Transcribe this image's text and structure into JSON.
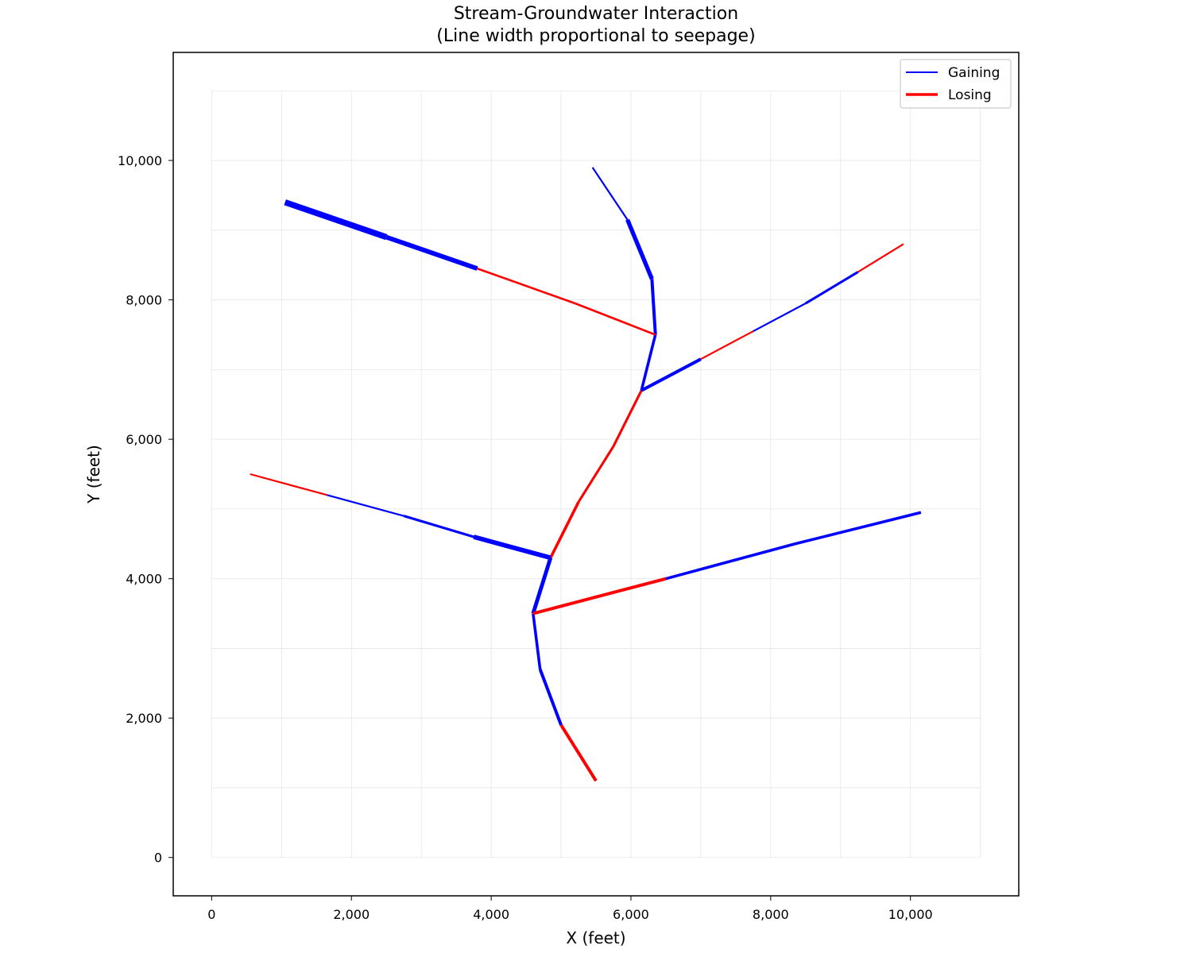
{
  "chart_data": {
    "type": "line",
    "title": [
      "Stream-Groundwater Interaction",
      "(Line width proportional to seepage)"
    ],
    "xlabel": "X (feet)",
    "ylabel": "Y (feet)",
    "xlim": [
      -550,
      11550
    ],
    "ylim": [
      -550,
      11550
    ],
    "xticks": [
      0,
      2000,
      4000,
      6000,
      8000,
      10000
    ],
    "yticks": [
      0,
      2000,
      4000,
      6000,
      8000,
      10000
    ],
    "xtick_labels": [
      "0",
      "2,000",
      "4,000",
      "6,000",
      "8,000",
      "10,000"
    ],
    "ytick_labels": [
      "0",
      "2,000",
      "4,000",
      "6,000",
      "8,000",
      "10,000"
    ],
    "grid": {
      "on": true,
      "extent": [
        0,
        11000
      ],
      "step": 1000
    },
    "legend": {
      "position": "top-right",
      "entries": [
        {
          "label": "Gaining",
          "status": "gaining"
        },
        {
          "label": "Losing",
          "status": "losing"
        }
      ]
    },
    "colors": {
      "gaining": "#0000ff",
      "losing": "#ff0000"
    },
    "seepage_scale_note": "relative seepage magnitude",
    "segments": [
      {
        "x": [
          5500,
          5000
        ],
        "y": [
          1100,
          1900
        ],
        "status": "losing",
        "seepage": 4
      },
      {
        "x": [
          5000,
          4700
        ],
        "y": [
          1900,
          2700
        ],
        "status": "gaining",
        "seepage": 4
      },
      {
        "x": [
          4700,
          4600
        ],
        "y": [
          2700,
          3500
        ],
        "status": "gaining",
        "seepage": 3.5
      },
      {
        "x": [
          4600,
          4850
        ],
        "y": [
          3500,
          4300
        ],
        "status": "gaining",
        "seepage": 5
      },
      {
        "x": [
          4850,
          5250
        ],
        "y": [
          4300,
          5100
        ],
        "status": "losing",
        "seepage": 3.5
      },
      {
        "x": [
          5250,
          5750
        ],
        "y": [
          5100,
          5900
        ],
        "status": "losing",
        "seepage": 3
      },
      {
        "x": [
          5750,
          6150
        ],
        "y": [
          5900,
          6700
        ],
        "status": "losing",
        "seepage": 3
      },
      {
        "x": [
          6150,
          6350
        ],
        "y": [
          6700,
          7500
        ],
        "status": "gaining",
        "seepage": 3.5
      },
      {
        "x": [
          6350,
          6300
        ],
        "y": [
          7500,
          8300
        ],
        "status": "gaining",
        "seepage": 4
      },
      {
        "x": [
          6300,
          5950
        ],
        "y": [
          8300,
          9150
        ],
        "status": "gaining",
        "seepage": 5.5
      },
      {
        "x": [
          5950,
          5450
        ],
        "y": [
          9150,
          9900
        ],
        "status": "gaining",
        "seepage": 2
      },
      {
        "x": [
          6350,
          5200
        ],
        "y": [
          7500,
          7950
        ],
        "status": "losing",
        "seepage": 2.5
      },
      {
        "x": [
          5200,
          3800
        ],
        "y": [
          7950,
          8450
        ],
        "status": "losing",
        "seepage": 2.5
      },
      {
        "x": [
          3800,
          2500
        ],
        "y": [
          8450,
          8900
        ],
        "status": "gaining",
        "seepage": 6
      },
      {
        "x": [
          2500,
          1050
        ],
        "y": [
          8900,
          9400
        ],
        "status": "gaining",
        "seepage": 8
      },
      {
        "x": [
          6150,
          7000
        ],
        "y": [
          6700,
          7150
        ],
        "status": "gaining",
        "seepage": 4
      },
      {
        "x": [
          7000,
          7750
        ],
        "y": [
          7150,
          7550
        ],
        "status": "losing",
        "seepage": 2
      },
      {
        "x": [
          7750,
          8500
        ],
        "y": [
          7550,
          7950
        ],
        "status": "gaining",
        "seepage": 2
      },
      {
        "x": [
          8500,
          9250
        ],
        "y": [
          7950,
          8400
        ],
        "status": "gaining",
        "seepage": 3
      },
      {
        "x": [
          9250,
          9900
        ],
        "y": [
          8400,
          8800
        ],
        "status": "losing",
        "seepage": 2
      },
      {
        "x": [
          4850,
          3750
        ],
        "y": [
          4300,
          4600
        ],
        "status": "gaining",
        "seepage": 6
      },
      {
        "x": [
          3750,
          2750
        ],
        "y": [
          4600,
          4900
        ],
        "status": "gaining",
        "seepage": 3
      },
      {
        "x": [
          2750,
          1650
        ],
        "y": [
          4900,
          5200
        ],
        "status": "gaining",
        "seepage": 2
      },
      {
        "x": [
          1650,
          550
        ],
        "y": [
          5200,
          5500
        ],
        "status": "losing",
        "seepage": 2
      },
      {
        "x": [
          4600,
          6500
        ],
        "y": [
          3500,
          4000
        ],
        "status": "losing",
        "seepage": 4
      },
      {
        "x": [
          6500,
          8350
        ],
        "y": [
          4000,
          4500
        ],
        "status": "gaining",
        "seepage": 3.5
      },
      {
        "x": [
          8350,
          10150
        ],
        "y": [
          4500,
          4950
        ],
        "status": "gaining",
        "seepage": 3.5
      }
    ]
  }
}
